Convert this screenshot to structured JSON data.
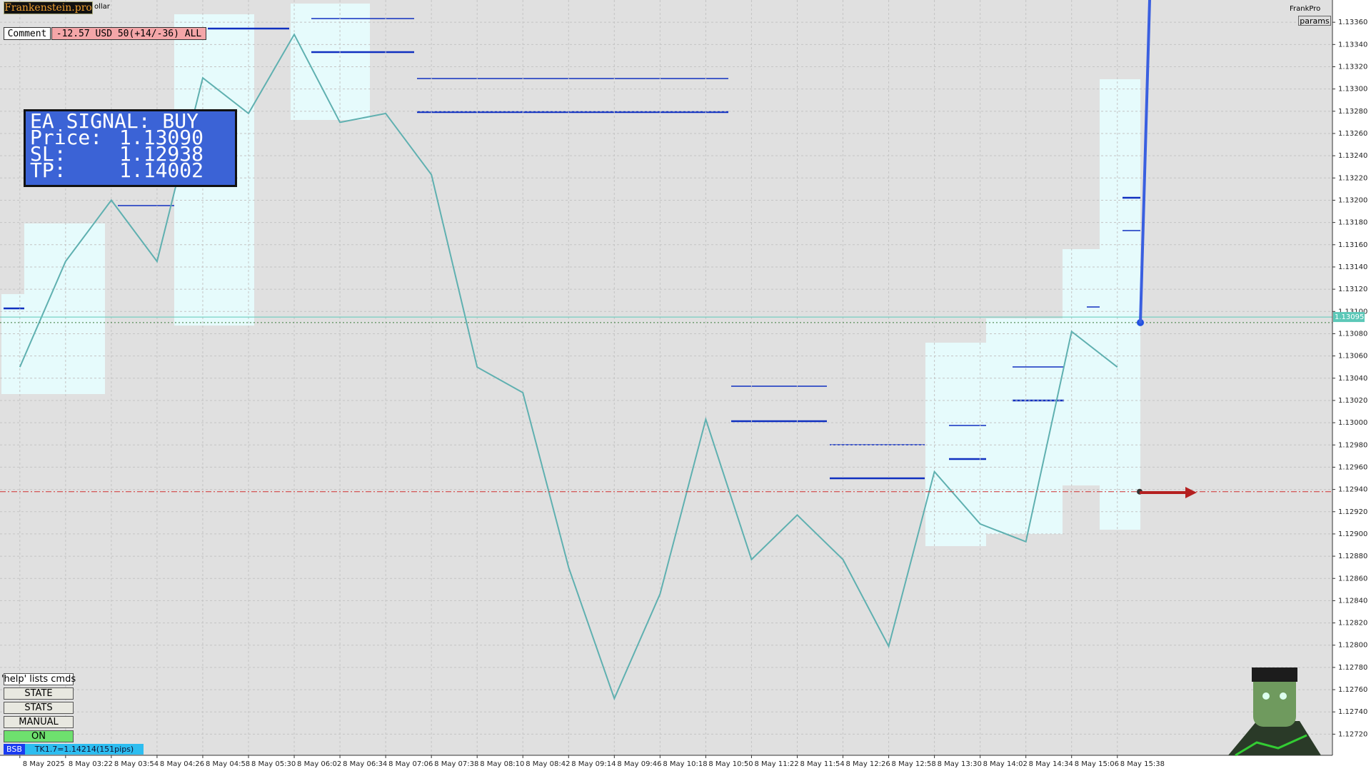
{
  "header": {
    "logo": "Frankenstein.pro",
    "symbol_suffix": "ollar",
    "comment_label": "Comment",
    "comment_value": "-12.57 USD 50(+14/-36) ALL",
    "brand": "FrankPro",
    "params": "params"
  },
  "signal": {
    "title": "EA SIGNAL: BUY",
    "rows": [
      [
        "Price:",
        "1.13090"
      ],
      [
        "SL:",
        "1.12938"
      ],
      [
        "TP:",
        "1.14002"
      ]
    ]
  },
  "buttons": {
    "help": "'help' lists cmds",
    "items": [
      "STATE",
      "STATS",
      "MANUAL",
      "ON"
    ]
  },
  "status": {
    "tag": "BSB",
    "text": "TK1.7=1.14214(151pips)"
  },
  "chart_data": {
    "type": "line",
    "current_price_label": "1.13095",
    "x": [
      "8 May 2025",
      "8 May 03:22",
      "8 May 03:54",
      "8 May 04:26",
      "8 May 04:58",
      "8 May 05:30",
      "8 May 06:02",
      "8 May 06:34",
      "8 May 07:06",
      "8 May 07:38",
      "8 May 08:10",
      "8 May 08:42",
      "8 May 09:14",
      "8 May 09:46",
      "8 May 10:18",
      "8 May 10:50",
      "8 May 11:22",
      "8 May 11:54",
      "8 May 12:26",
      "8 May 12:58",
      "8 May 13:30",
      "8 May 14:02",
      "8 May 14:34",
      "8 May 15:06",
      "8 May 15:38"
    ],
    "series": [
      {
        "color": "#5fb0b0",
        "values": [
          1.1305,
          1.13145,
          1.132,
          1.13145,
          1.1331,
          1.13278,
          1.13349,
          1.1327,
          1.13278,
          1.13223,
          1.1305,
          1.13027,
          1.1287,
          1.12752,
          1.12846,
          1.13003,
          1.12877,
          1.12917,
          1.12877,
          1.12799,
          1.12956,
          1.12909,
          1.12893,
          1.13082,
          1.1305
        ]
      }
    ],
    "ylim": [
      1.12701,
      1.1338
    ],
    "yticks": [
      {
        "value": 1.1272,
        "label": "1.12720"
      },
      {
        "value": 1.1274,
        "label": "1.12740"
      },
      {
        "value": 1.1276,
        "label": "1.12760"
      },
      {
        "value": 1.1278,
        "label": "1.12780"
      },
      {
        "value": 1.128,
        "label": "1.12800"
      },
      {
        "value": 1.1282,
        "label": "1.12820"
      },
      {
        "value": 1.1284,
        "label": "1.12840"
      },
      {
        "value": 1.1286,
        "label": "1.12860"
      },
      {
        "value": 1.1288,
        "label": "1.12880"
      },
      {
        "value": 1.129,
        "label": "1.12900"
      },
      {
        "value": 1.1292,
        "label": "1.12920"
      },
      {
        "value": 1.1294,
        "label": "1.12940"
      },
      {
        "value": 1.1296,
        "label": "1.12960"
      },
      {
        "value": 1.1298,
        "label": "1.12980"
      },
      {
        "value": 1.13,
        "label": "1.13000"
      },
      {
        "value": 1.1302,
        "label": "1.13020"
      },
      {
        "value": 1.1304,
        "label": "1.13040"
      },
      {
        "value": 1.1306,
        "label": "1.13060"
      },
      {
        "value": 1.1308,
        "label": "1.13080"
      },
      {
        "value": 1.131,
        "label": "1.13100"
      },
      {
        "value": 1.1312,
        "label": "1.13120"
      },
      {
        "value": 1.1314,
        "label": "1.13140"
      },
      {
        "value": 1.1316,
        "label": "1.13160"
      },
      {
        "value": 1.1318,
        "label": "1.13180"
      },
      {
        "value": 1.132,
        "label": "1.13200"
      },
      {
        "value": 1.1322,
        "label": "1.13220"
      },
      {
        "value": 1.1324,
        "label": "1.13240"
      },
      {
        "value": 1.1326,
        "label": "1.13260"
      },
      {
        "value": 1.1328,
        "label": "1.13280"
      },
      {
        "value": 1.133,
        "label": "1.13300"
      },
      {
        "value": 1.1332,
        "label": "1.13320"
      },
      {
        "value": 1.1334,
        "label": "1.13340"
      },
      {
        "value": 1.1336,
        "label": "1.13360"
      }
    ],
    "grid": true
  }
}
